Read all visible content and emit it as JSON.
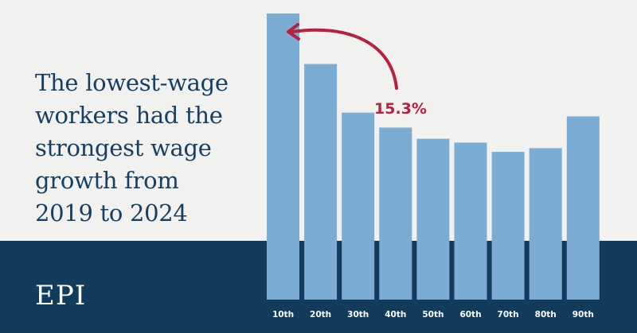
{
  "headline": {
    "lines": [
      "The lowest-wage",
      "workers had the",
      "strongest wage",
      "growth from",
      "2019 to 2024"
    ]
  },
  "logo": "EPI",
  "colors": {
    "background": "#f1f2ef",
    "band": "#123c5c",
    "bar": "#7bacd3",
    "headline": "#173f63",
    "accent": "#b8203f"
  },
  "chart_data": {
    "type": "bar",
    "title": "The lowest-wage workers had the strongest wage growth from 2019 to 2024",
    "categories": [
      "10th",
      "20th",
      "30th",
      "40th",
      "50th",
      "60th",
      "70th",
      "80th",
      "90th"
    ],
    "values": [
      15.3,
      12.6,
      10.0,
      9.2,
      8.6,
      8.4,
      7.9,
      8.1,
      9.8
    ],
    "xlabel": "",
    "ylabel": "",
    "ylim": [
      0,
      16
    ],
    "annotation": {
      "text": "15.3%",
      "target_category": "10th",
      "arrow_icon": "curved-arrow-icon"
    }
  }
}
